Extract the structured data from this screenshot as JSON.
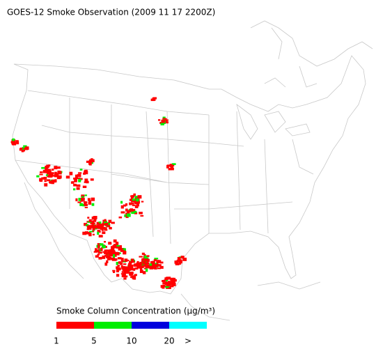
{
  "title": "GOES-12 Smoke Observation (2009 11 17  2200Z)",
  "legend": {
    "label": "Smoke Column Concentration (μg/m³)",
    "colors": [
      "#ff0000",
      "#00ee00",
      "#0000dd",
      "#00ffff"
    ],
    "ticks": [
      1,
      5,
      10,
      20
    ],
    "overflow": ">"
  }
}
